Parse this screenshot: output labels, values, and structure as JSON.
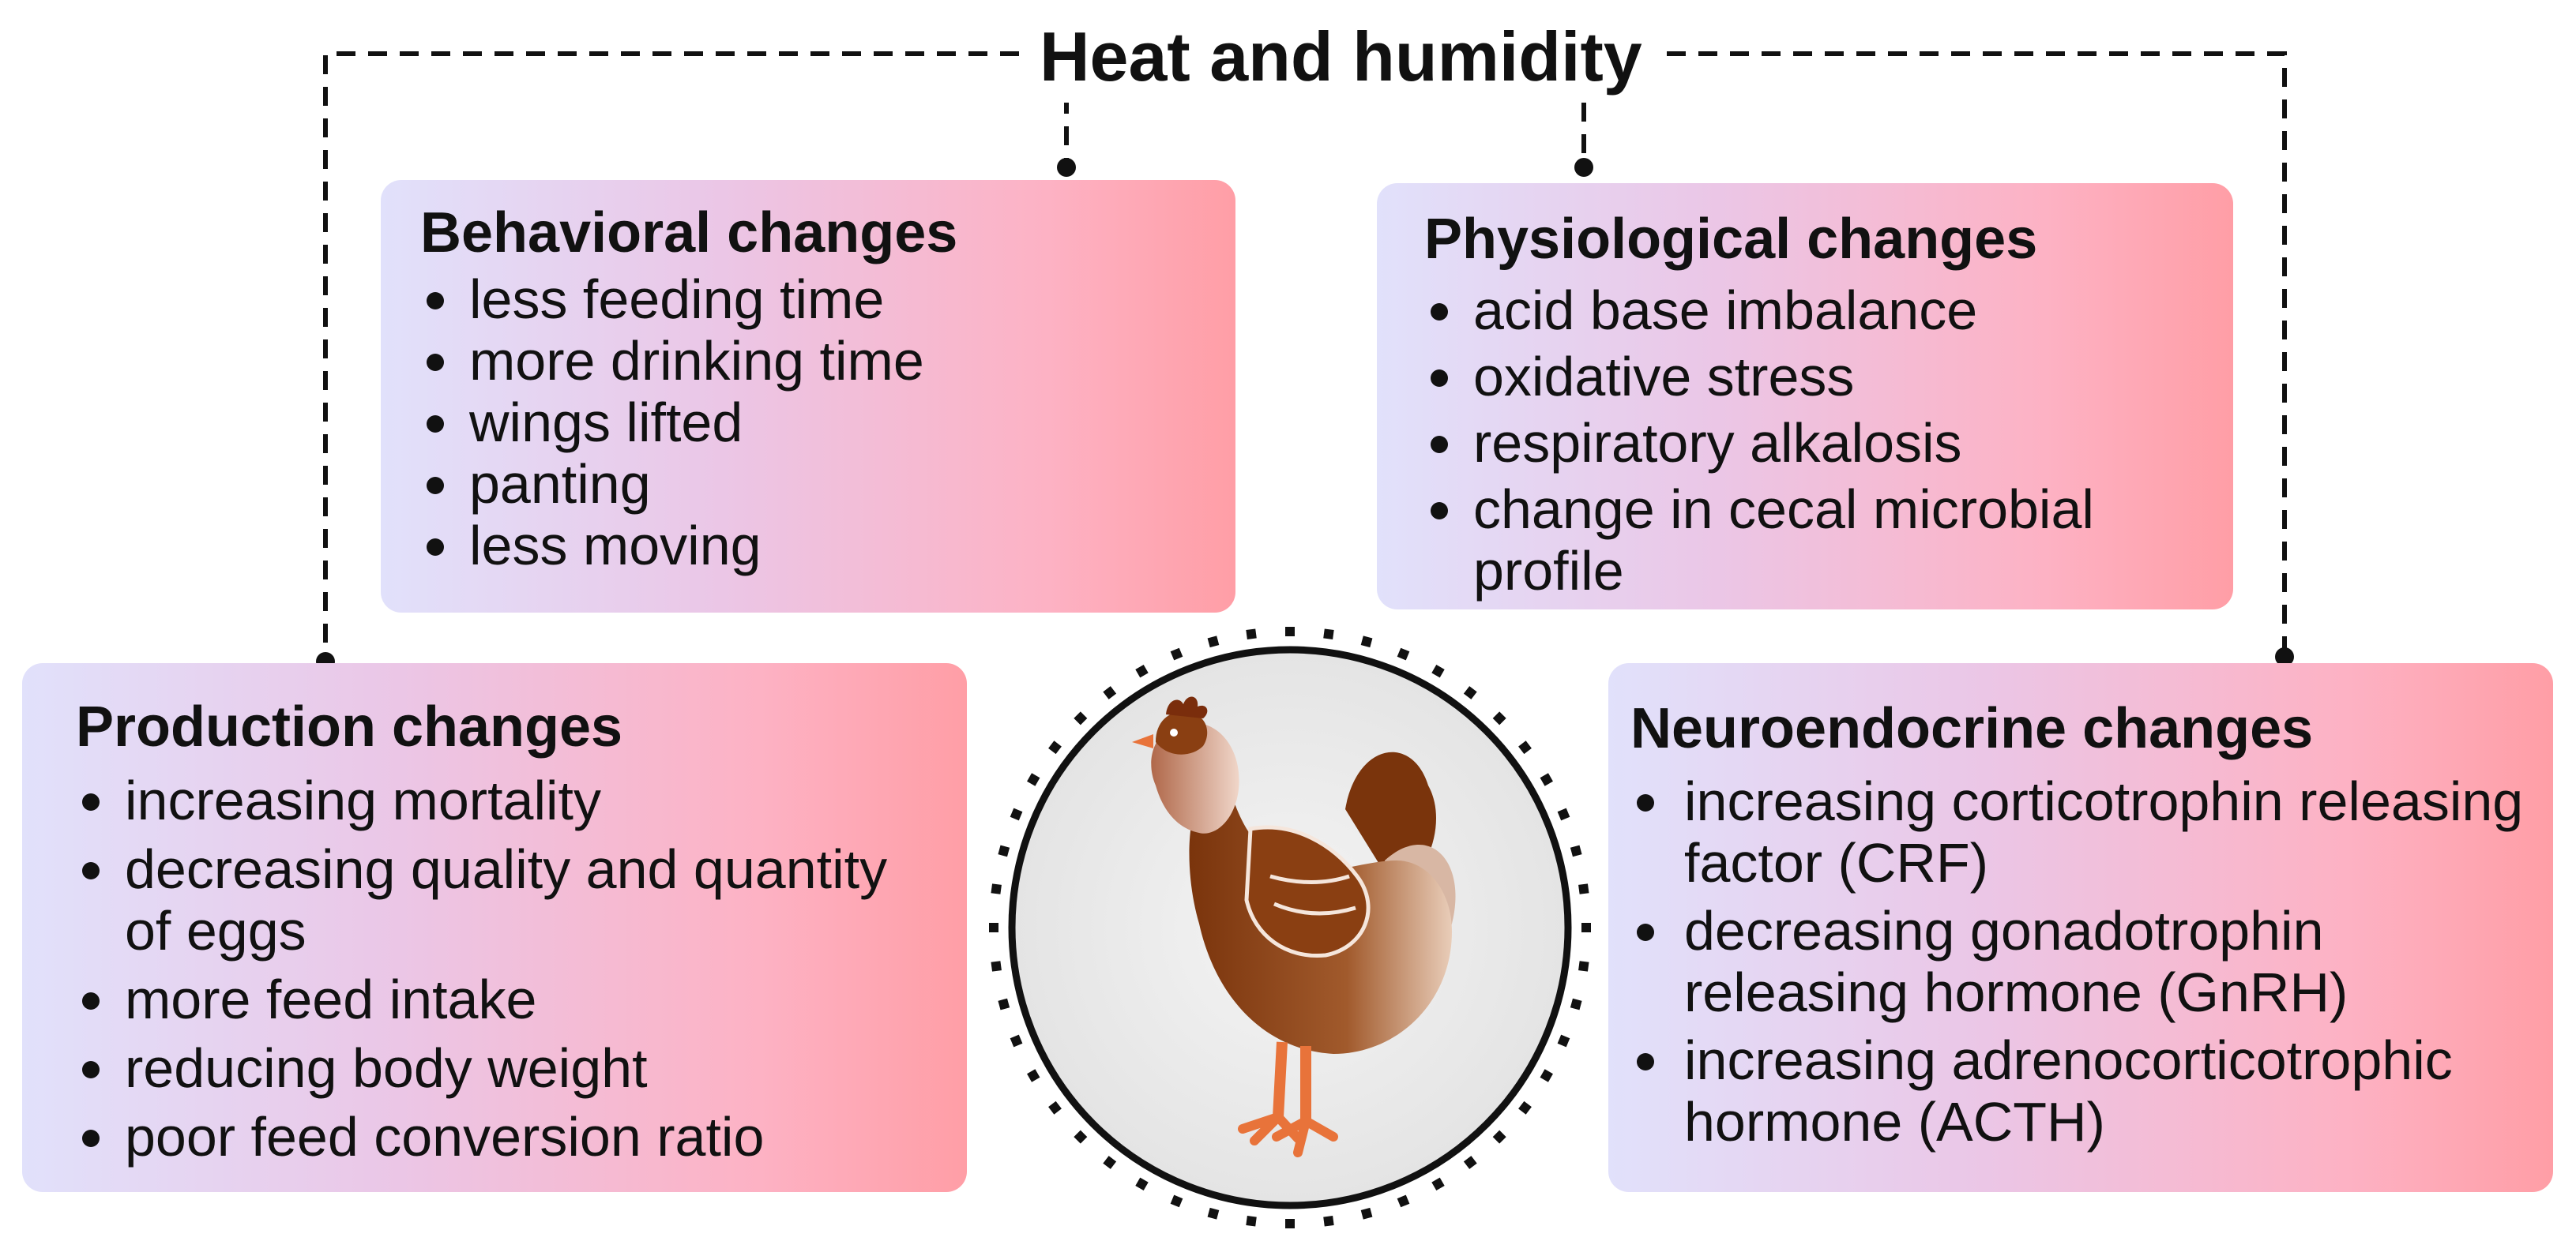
{
  "title": "Heat and humidity",
  "boxes": {
    "behavioral": {
      "heading": "Behavioral changes",
      "items": [
        "less feeding time",
        "more drinking time",
        "wings lifted",
        "panting",
        "less moving"
      ]
    },
    "physiological": {
      "heading": "Physiological changes",
      "items": [
        "acid base imbalance",
        "oxidative stress",
        "respiratory alkalosis",
        "change in cecal microbial profile"
      ]
    },
    "production": {
      "heading": "Production changes",
      "items": [
        "increasing mortality",
        "decreasing quality and quantity of eggs",
        "more feed intake",
        "reducing body weight",
        "poor feed conversion ratio"
      ]
    },
    "neuroendocrine": {
      "heading": "Neuroendocrine changes",
      "items": [
        "increasing corticotrophin releasing factor (CRF)",
        "decreasing gonadotrophin releasing hormone (GnRH)",
        "increasing adrenocorticotrophic hormone (ACTH)"
      ]
    }
  },
  "colors": {
    "box_left": "#e1e1fb",
    "box_right": "#ff9ea6",
    "connector": "#111111",
    "hen_body": "#8a3f12",
    "hen_feet": "#e8733a"
  },
  "icons": {
    "center": "hen-icon"
  }
}
